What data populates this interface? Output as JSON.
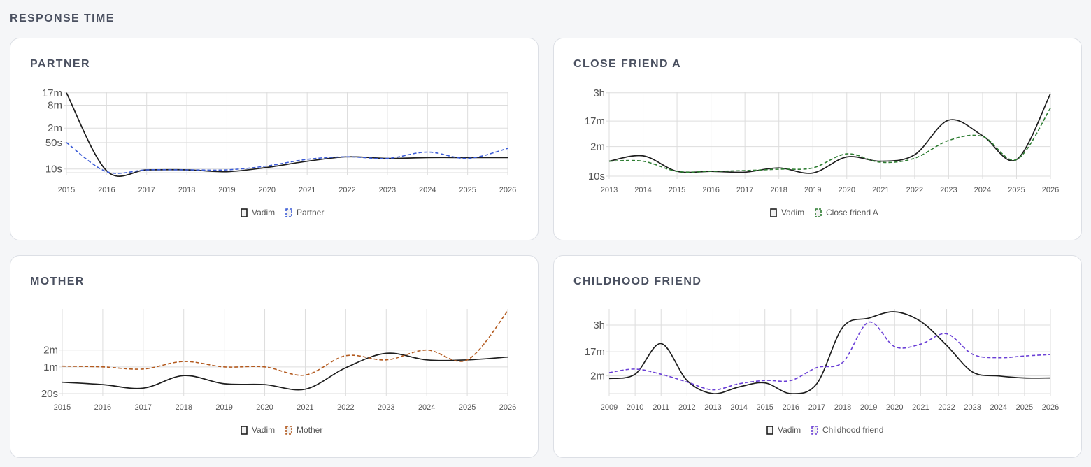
{
  "page": {
    "section_title": "RESPONSE TIME"
  },
  "chart_data": [
    {
      "id": "partner",
      "type": "line",
      "title": "PARTNER",
      "x": [
        2015,
        2016,
        2017,
        2018,
        2019,
        2020,
        2021,
        2022,
        2023,
        2024,
        2025,
        2026
      ],
      "y_ticks": [
        "17m",
        "8m",
        "2m",
        "50s",
        "10s"
      ],
      "series": [
        {
          "name": "Vadim",
          "style": "solid",
          "color": "#1e1e1e",
          "values": [
            1020,
            9,
            9.5,
            9.5,
            8.5,
            11,
            16,
            21,
            19,
            20,
            20,
            20
          ]
        },
        {
          "name": "Partner",
          "style": "dashed",
          "color": "#3b5bd6",
          "values": [
            50,
            8.5,
            9.5,
            9.5,
            9.5,
            12,
            18,
            21,
            19,
            28,
            19,
            35
          ]
        }
      ]
    },
    {
      "id": "close_friend_a",
      "type": "line",
      "title": "CLOSE FRIEND A",
      "x": [
        2013,
        2014,
        2015,
        2016,
        2017,
        2018,
        2019,
        2020,
        2021,
        2022,
        2023,
        2024,
        2025,
        2026
      ],
      "y_ticks": [
        "3h",
        "17m",
        "2m",
        "10s"
      ],
      "series": [
        {
          "name": "Vadim",
          "style": "solid",
          "color": "#1e1e1e",
          "values": [
            35,
            55,
            15,
            15,
            14,
            20,
            13,
            50,
            35,
            60,
            1100,
            300,
            40,
            10000
          ]
        },
        {
          "name": "Close friend A",
          "style": "dashed",
          "color": "#2e7d32",
          "values": [
            35,
            35,
            15,
            15,
            16,
            18,
            20,
            65,
            32,
            45,
            200,
            280,
            40,
            3000
          ]
        }
      ]
    },
    {
      "id": "mother",
      "type": "line",
      "title": "MOTHER",
      "x": [
        2015,
        2016,
        2017,
        2018,
        2019,
        2020,
        2021,
        2022,
        2023,
        2024,
        2025,
        2026
      ],
      "y_ticks": [
        "2m",
        "1m",
        "20s"
      ],
      "series": [
        {
          "name": "Vadim",
          "style": "solid",
          "color": "#1e1e1e",
          "values": [
            32,
            29,
            25,
            42,
            30,
            29,
            24,
            58,
            105,
            80,
            80,
            90
          ]
        },
        {
          "name": "Mother",
          "style": "dashed",
          "color": "#b35a1f",
          "values": [
            62,
            60,
            55,
            75,
            60,
            60,
            43,
            95,
            80,
            120,
            80,
            600
          ]
        }
      ]
    },
    {
      "id": "childhood_friend",
      "type": "line",
      "title": "CHILDHOOD FRIEND",
      "x": [
        2009,
        2010,
        2011,
        2012,
        2013,
        2014,
        2015,
        2016,
        2017,
        2018,
        2019,
        2020,
        2021,
        2022,
        2023,
        2024,
        2025,
        2026
      ],
      "y_ticks": [
        "3h",
        "17m",
        "2m"
      ],
      "series": [
        {
          "name": "Vadim",
          "style": "solid",
          "color": "#1e1e1e",
          "values": [
            95,
            140,
            2100,
            80,
            25,
            45,
            65,
            25,
            60,
            9000,
            20000,
            35000,
            15000,
            1800,
            170,
            120,
            100,
            100
          ]
        },
        {
          "name": "Childhood friend",
          "style": "dashed",
          "color": "#6a3fd6",
          "values": [
            160,
            220,
            140,
            70,
            35,
            60,
            80,
            80,
            250,
            400,
            14000,
            1600,
            2000,
            5000,
            820,
            600,
            700,
            800
          ]
        }
      ]
    }
  ]
}
